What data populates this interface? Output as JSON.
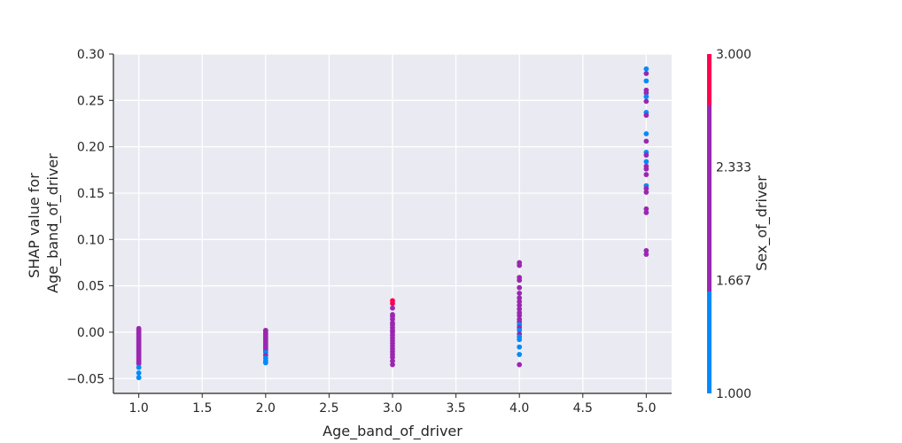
{
  "chart_data": {
    "type": "scatter",
    "title": "",
    "xlabel": "Age_band_of_driver",
    "ylabel_lines": [
      "SHAP value for",
      "Age_band_of_driver"
    ],
    "xlim": [
      0.8,
      5.2
    ],
    "ylim": [
      -0.066,
      0.3
    ],
    "x_ticks": [
      1.0,
      1.5,
      2.0,
      2.5,
      3.0,
      3.5,
      4.0,
      4.5,
      5.0
    ],
    "x_tick_labels": [
      "1.0",
      "1.5",
      "2.0",
      "2.5",
      "3.0",
      "3.5",
      "4.0",
      "4.5",
      "5.0"
    ],
    "y_ticks": [
      -0.05,
      0.0,
      0.05,
      0.1,
      0.15,
      0.2,
      0.25,
      0.3
    ],
    "y_tick_labels": [
      "−0.05",
      "0.00",
      "0.05",
      "0.10",
      "0.15",
      "0.20",
      "0.25",
      "0.30"
    ],
    "grid": true,
    "background": "#eaeaf2",
    "colorbar": {
      "label": "Sex_of_driver",
      "range": [
        1.0,
        3.0
      ],
      "ticks": [
        1.0,
        1.667,
        2.333,
        3.0
      ],
      "tick_labels": [
        "1.000",
        "1.667",
        "2.333",
        "3.000"
      ],
      "colors": [
        "#008bfb",
        "#9b27b0",
        "#ff0052"
      ],
      "boundaries": [
        1.0,
        1.6,
        2.7,
        3.0
      ]
    },
    "series": [
      {
        "points": [
          {
            "x": 1.0,
            "y": 0.004,
            "c": 2.0
          },
          {
            "x": 1.0,
            "y": 0.002,
            "c": 2.0
          },
          {
            "x": 1.0,
            "y": 0.0,
            "c": 2.0
          },
          {
            "x": 1.0,
            "y": -0.002,
            "c": 2.0
          },
          {
            "x": 1.0,
            "y": -0.004,
            "c": 2.0
          },
          {
            "x": 1.0,
            "y": -0.006,
            "c": 2.0
          },
          {
            "x": 1.0,
            "y": -0.008,
            "c": 2.0
          },
          {
            "x": 1.0,
            "y": -0.01,
            "c": 2.0
          },
          {
            "x": 1.0,
            "y": -0.012,
            "c": 2.0
          },
          {
            "x": 1.0,
            "y": -0.014,
            "c": 2.0
          },
          {
            "x": 1.0,
            "y": -0.016,
            "c": 2.0
          },
          {
            "x": 1.0,
            "y": -0.018,
            "c": 2.0
          },
          {
            "x": 1.0,
            "y": -0.02,
            "c": 2.0
          },
          {
            "x": 1.0,
            "y": -0.022,
            "c": 2.0
          },
          {
            "x": 1.0,
            "y": -0.024,
            "c": 2.0
          },
          {
            "x": 1.0,
            "y": -0.026,
            "c": 2.0
          },
          {
            "x": 1.0,
            "y": -0.028,
            "c": 2.0
          },
          {
            "x": 1.0,
            "y": -0.03,
            "c": 2.0
          },
          {
            "x": 1.0,
            "y": -0.032,
            "c": 2.0
          },
          {
            "x": 1.0,
            "y": -0.034,
            "c": 2.0
          },
          {
            "x": 1.0,
            "y": -0.038,
            "c": 1.0
          },
          {
            "x": 1.0,
            "y": -0.044,
            "c": 1.0
          },
          {
            "x": 1.0,
            "y": -0.049,
            "c": 1.0
          },
          {
            "x": 2.0,
            "y": 0.002,
            "c": 2.0
          },
          {
            "x": 2.0,
            "y": 0.0,
            "c": 2.0
          },
          {
            "x": 2.0,
            "y": -0.002,
            "c": 2.0
          },
          {
            "x": 2.0,
            "y": -0.004,
            "c": 2.0
          },
          {
            "x": 2.0,
            "y": -0.006,
            "c": 2.0
          },
          {
            "x": 2.0,
            "y": -0.008,
            "c": 2.0
          },
          {
            "x": 2.0,
            "y": -0.01,
            "c": 2.0
          },
          {
            "x": 2.0,
            "y": -0.012,
            "c": 2.0
          },
          {
            "x": 2.0,
            "y": -0.014,
            "c": 2.0
          },
          {
            "x": 2.0,
            "y": -0.016,
            "c": 2.0
          },
          {
            "x": 2.0,
            "y": -0.018,
            "c": 2.0
          },
          {
            "x": 2.0,
            "y": -0.02,
            "c": 2.0
          },
          {
            "x": 2.0,
            "y": -0.022,
            "c": 1.0
          },
          {
            "x": 2.0,
            "y": -0.025,
            "c": 2.0
          },
          {
            "x": 2.0,
            "y": -0.028,
            "c": 1.0
          },
          {
            "x": 2.0,
            "y": -0.031,
            "c": 1.0
          },
          {
            "x": 2.0,
            "y": -0.033,
            "c": 1.0
          },
          {
            "x": 3.0,
            "y": 0.034,
            "c": 3.0
          },
          {
            "x": 3.0,
            "y": 0.031,
            "c": 3.0
          },
          {
            "x": 3.0,
            "y": 0.026,
            "c": 2.0
          },
          {
            "x": 3.0,
            "y": 0.019,
            "c": 2.0
          },
          {
            "x": 3.0,
            "y": 0.017,
            "c": 2.0
          },
          {
            "x": 3.0,
            "y": 0.014,
            "c": 2.0
          },
          {
            "x": 3.0,
            "y": 0.01,
            "c": 2.0
          },
          {
            "x": 3.0,
            "y": 0.008,
            "c": 2.0
          },
          {
            "x": 3.0,
            "y": 0.005,
            "c": 2.0
          },
          {
            "x": 3.0,
            "y": 0.002,
            "c": 2.0
          },
          {
            "x": 3.0,
            "y": 0.0,
            "c": 2.0
          },
          {
            "x": 3.0,
            "y": -0.003,
            "c": 2.0
          },
          {
            "x": 3.0,
            "y": -0.006,
            "c": 2.0
          },
          {
            "x": 3.0,
            "y": -0.009,
            "c": 2.0
          },
          {
            "x": 3.0,
            "y": -0.012,
            "c": 2.0
          },
          {
            "x": 3.0,
            "y": -0.015,
            "c": 2.0
          },
          {
            "x": 3.0,
            "y": -0.018,
            "c": 2.0
          },
          {
            "x": 3.0,
            "y": -0.021,
            "c": 2.0
          },
          {
            "x": 3.0,
            "y": -0.024,
            "c": 2.0
          },
          {
            "x": 3.0,
            "y": -0.027,
            "c": 2.0
          },
          {
            "x": 3.0,
            "y": -0.031,
            "c": 2.0
          },
          {
            "x": 3.0,
            "y": -0.035,
            "c": 2.0
          },
          {
            "x": 4.0,
            "y": 0.075,
            "c": 2.6
          },
          {
            "x": 4.0,
            "y": 0.072,
            "c": 2.6
          },
          {
            "x": 4.0,
            "y": 0.059,
            "c": 2.6
          },
          {
            "x": 4.0,
            "y": 0.056,
            "c": 2.6
          },
          {
            "x": 4.0,
            "y": 0.048,
            "c": 2.0
          },
          {
            "x": 4.0,
            "y": 0.042,
            "c": 2.0
          },
          {
            "x": 4.0,
            "y": 0.037,
            "c": 2.0
          },
          {
            "x": 4.0,
            "y": 0.033,
            "c": 2.0
          },
          {
            "x": 4.0,
            "y": 0.029,
            "c": 2.0
          },
          {
            "x": 4.0,
            "y": 0.025,
            "c": 2.0
          },
          {
            "x": 4.0,
            "y": 0.021,
            "c": 2.0
          },
          {
            "x": 4.0,
            "y": 0.018,
            "c": 2.0
          },
          {
            "x": 4.0,
            "y": 0.014,
            "c": 2.0
          },
          {
            "x": 4.0,
            "y": 0.011,
            "c": 2.0
          },
          {
            "x": 4.0,
            "y": 0.008,
            "c": 1.0
          },
          {
            "x": 4.0,
            "y": 0.005,
            "c": 2.0
          },
          {
            "x": 4.0,
            "y": 0.002,
            "c": 1.0
          },
          {
            "x": 4.0,
            "y": -0.002,
            "c": 2.0
          },
          {
            "x": 4.0,
            "y": -0.005,
            "c": 1.0
          },
          {
            "x": 4.0,
            "y": -0.008,
            "c": 1.0
          },
          {
            "x": 4.0,
            "y": -0.016,
            "c": 1.0
          },
          {
            "x": 4.0,
            "y": -0.024,
            "c": 1.0
          },
          {
            "x": 4.0,
            "y": -0.035,
            "c": 2.0
          },
          {
            "x": 5.0,
            "y": 0.284,
            "c": 1.0
          },
          {
            "x": 5.0,
            "y": 0.279,
            "c": 2.0
          },
          {
            "x": 5.0,
            "y": 0.271,
            "c": 1.0
          },
          {
            "x": 5.0,
            "y": 0.261,
            "c": 2.0
          },
          {
            "x": 5.0,
            "y": 0.258,
            "c": 2.0
          },
          {
            "x": 5.0,
            "y": 0.254,
            "c": 1.0
          },
          {
            "x": 5.0,
            "y": 0.249,
            "c": 2.0
          },
          {
            "x": 5.0,
            "y": 0.237,
            "c": 1.0
          },
          {
            "x": 5.0,
            "y": 0.234,
            "c": 2.0
          },
          {
            "x": 5.0,
            "y": 0.214,
            "c": 1.0
          },
          {
            "x": 5.0,
            "y": 0.206,
            "c": 2.0
          },
          {
            "x": 5.0,
            "y": 0.194,
            "c": 1.0
          },
          {
            "x": 5.0,
            "y": 0.191,
            "c": 2.0
          },
          {
            "x": 5.0,
            "y": 0.184,
            "c": 1.0
          },
          {
            "x": 5.0,
            "y": 0.179,
            "c": 2.0
          },
          {
            "x": 5.0,
            "y": 0.176,
            "c": 2.0
          },
          {
            "x": 5.0,
            "y": 0.17,
            "c": 2.0
          },
          {
            "x": 5.0,
            "y": 0.158,
            "c": 1.0
          },
          {
            "x": 5.0,
            "y": 0.155,
            "c": 2.0
          },
          {
            "x": 5.0,
            "y": 0.151,
            "c": 2.0
          },
          {
            "x": 5.0,
            "y": 0.133,
            "c": 2.0
          },
          {
            "x": 5.0,
            "y": 0.129,
            "c": 2.0
          },
          {
            "x": 5.0,
            "y": 0.088,
            "c": 2.0
          },
          {
            "x": 5.0,
            "y": 0.084,
            "c": 2.0
          }
        ]
      }
    ]
  }
}
